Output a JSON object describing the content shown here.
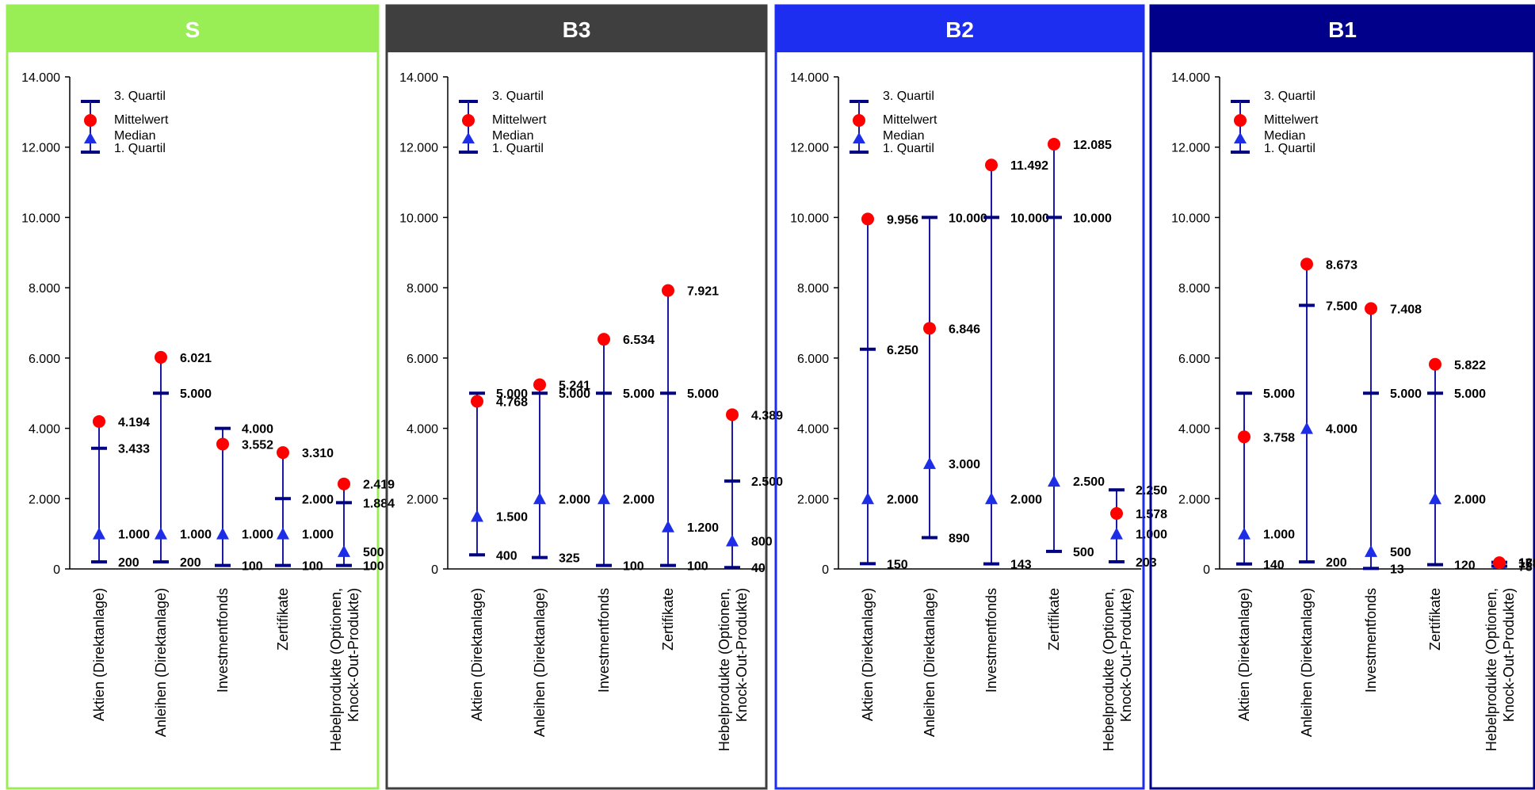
{
  "legend": {
    "q3": "3. Quartil",
    "mean": "Mittelwert",
    "median": "Median",
    "q1": "1. Quartil"
  },
  "colors": {
    "range_line": "#1a1aa6",
    "quartile": "#000080",
    "mean": "#ff0000",
    "median": "#1e2ee6"
  },
  "chart_data": [
    {
      "type": "box-summary",
      "title": "S",
      "title_bg": "#99ee55",
      "border": "#99ee55",
      "ylim": [
        0,
        14000
      ],
      "yticks": [
        "0",
        "2.000",
        "4.000",
        "6.000",
        "8.000",
        "10.000",
        "12.000",
        "14.000"
      ],
      "categories": [
        "Aktien (Direktanlage)",
        "Anleihen (Direktanlage)",
        "Investmentfonds",
        "Zertifikate",
        "Hebelprodukte (Optionen, Knock-Out-Produkte)"
      ],
      "q1": [
        200,
        200,
        100,
        100,
        100
      ],
      "median": [
        1000,
        1000,
        1000,
        1000,
        500
      ],
      "q3": [
        3433,
        5000,
        4000,
        2000,
        1884
      ],
      "mean": [
        4194,
        6021,
        3552,
        3310,
        2419
      ]
    },
    {
      "type": "box-summary",
      "title": "B3",
      "title_bg": "#3f3f3f",
      "border": "#3f3f3f",
      "ylim": [
        0,
        14000
      ],
      "yticks": [
        "0",
        "2.000",
        "4.000",
        "6.000",
        "8.000",
        "10.000",
        "12.000",
        "14.000"
      ],
      "categories": [
        "Aktien (Direktanlage)",
        "Anleihen (Direktanlage)",
        "Investmentfonds",
        "Zertifikate",
        "Hebelprodukte (Optionen, Knock-Out-Produkte)"
      ],
      "q1": [
        400,
        325,
        100,
        100,
        40
      ],
      "median": [
        1500,
        2000,
        2000,
        1200,
        800
      ],
      "q3": [
        5000,
        5000,
        5000,
        5000,
        2500
      ],
      "mean": [
        4768,
        5241,
        6534,
        7921,
        4389
      ]
    },
    {
      "type": "box-summary",
      "title": "B2",
      "title_bg": "#1e2ef0",
      "border": "#1e2ef0",
      "ylim": [
        0,
        14000
      ],
      "yticks": [
        "0",
        "2.000",
        "4.000",
        "6.000",
        "8.000",
        "10.000",
        "12.000",
        "14.000"
      ],
      "categories": [
        "Aktien (Direktanlage)",
        "Anleihen (Direktanlage)",
        "Investmentfonds",
        "Zertifikate",
        "Hebelprodukte (Optionen, Knock-Out-Produkte)"
      ],
      "q1": [
        150,
        890,
        143,
        500,
        203
      ],
      "median": [
        2000,
        3000,
        2000,
        2500,
        1000
      ],
      "q3": [
        6250,
        10000,
        10000,
        10000,
        2250
      ],
      "mean": [
        9956,
        6846,
        11492,
        12085,
        1578
      ]
    },
    {
      "type": "box-summary",
      "title": "B1",
      "title_bg": "#00008b",
      "border": "#00008b",
      "ylim": [
        0,
        14000
      ],
      "yticks": [
        "0",
        "2.000",
        "4.000",
        "6.000",
        "8.000",
        "10.000",
        "12.000",
        "14.000"
      ],
      "categories": [
        "Aktien (Direktanlage)",
        "Anleihen (Direktanlage)",
        "Investmentfonds",
        "Zertifikate",
        "Hebelprodukte (Optionen, Knock-Out-Produkte)"
      ],
      "q1": [
        140,
        200,
        13,
        120,
        78
      ],
      "median": [
        1000,
        4000,
        500,
        2000,
        168
      ],
      "q3": [
        5000,
        7500,
        5000,
        5000,
        189
      ],
      "mean": [
        3758,
        8673,
        7408,
        5822,
        178
      ]
    }
  ]
}
